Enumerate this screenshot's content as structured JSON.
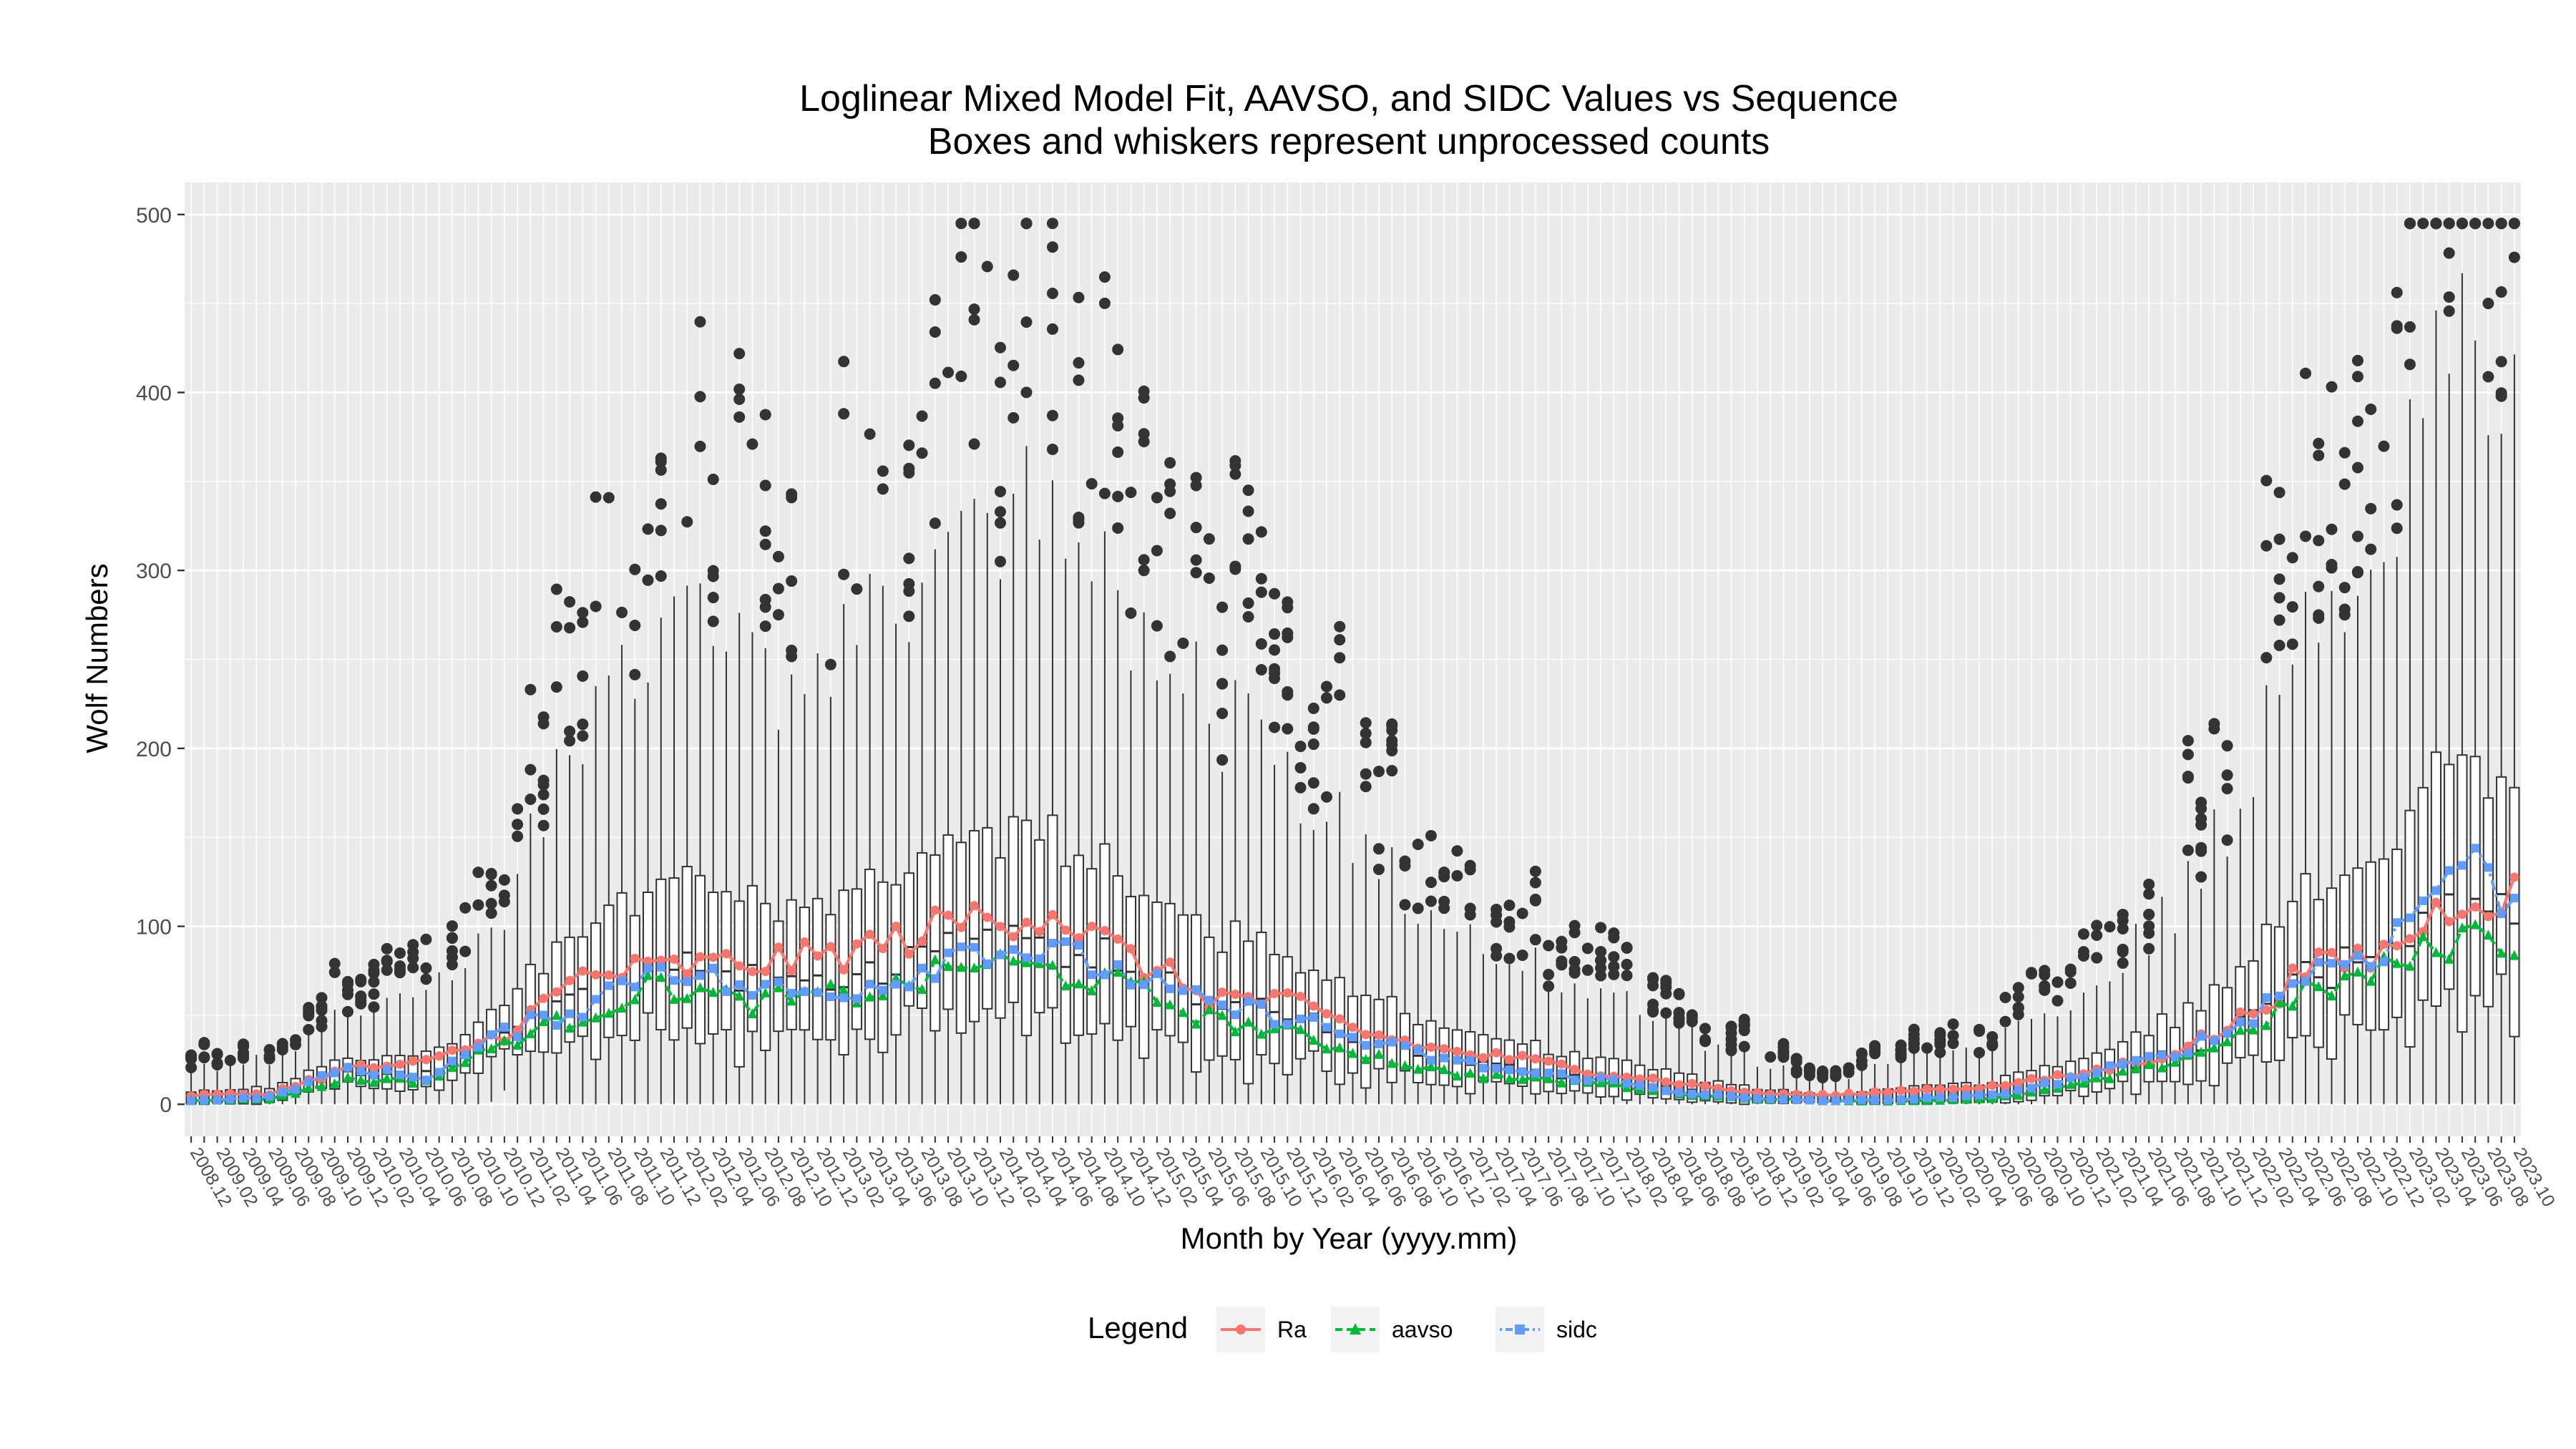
{
  "chart_data": {
    "type": "line",
    "title": "Loglinear Mixed Model Fit, AAVSO, and SIDC Values vs Sequence",
    "subtitle": "Boxes and whiskers represent unprocessed counts",
    "xlabel": "Month by Year (yyyy.mm)",
    "ylabel": "Wolf Numbers",
    "ylim": [
      -18,
      518
    ],
    "yticks": [
      0,
      100,
      200,
      300,
      400,
      500
    ],
    "grid": true,
    "legend_position": "bottom",
    "legend_title": "Legend",
    "x_start": "2008-12",
    "x_end": "2023-10",
    "x_tick_every_months": 2,
    "series": [
      {
        "name": "Ra",
        "color": "#F8766D",
        "marker": "circle",
        "dash": "solid"
      },
      {
        "name": "aavso",
        "color": "#00BA38",
        "marker": "triangle",
        "dash": "dashed"
      },
      {
        "name": "sidc",
        "color": "#619CFF",
        "marker": "square",
        "dash": "dotdash"
      }
    ],
    "anchors": {
      "dates": [
        "2008-12",
        "2009-06",
        "2009-12",
        "2010-06",
        "2010-12",
        "2011-06",
        "2011-12",
        "2012-06",
        "2012-12",
        "2013-06",
        "2013-12",
        "2014-06",
        "2014-12",
        "2015-06",
        "2015-12",
        "2016-06",
        "2016-12",
        "2017-06",
        "2017-12",
        "2018-06",
        "2018-12",
        "2019-06",
        "2019-12",
        "2020-06",
        "2020-12",
        "2021-06",
        "2021-12",
        "2022-06",
        "2022-12",
        "2023-06",
        "2023-10"
      ],
      "Ra": [
        5,
        6,
        20,
        23,
        40,
        72,
        76,
        79,
        82,
        92,
        105,
        108,
        82,
        61,
        57,
        40,
        30,
        25,
        18,
        12,
        6,
        5,
        8,
        10,
        16,
        25,
        42,
        75,
        85,
        118,
        118
      ],
      "aavso": [
        2,
        3,
        14,
        13,
        35,
        50,
        68,
        57,
        60,
        65,
        80,
        75,
        65,
        48,
        40,
        28,
        18,
        14,
        12,
        6,
        3,
        2,
        2,
        3,
        10,
        20,
        35,
        62,
        75,
        95,
        92
      ],
      "sidc": [
        2,
        4,
        20,
        15,
        40,
        55,
        80,
        65,
        62,
        70,
        90,
        85,
        72,
        55,
        50,
        35,
        25,
        18,
        14,
        7,
        3,
        2,
        3,
        5,
        14,
        25,
        40,
        74,
        88,
        140,
        112
      ],
      "spread": [
        14,
        18,
        30,
        42,
        60,
        120,
        160,
        150,
        150,
        170,
        220,
        210,
        180,
        140,
        120,
        90,
        70,
        55,
        45,
        28,
        16,
        10,
        18,
        22,
        40,
        60,
        100,
        150,
        200,
        280,
        260
      ]
    },
    "box_summary": "One box per month (179 boxes, 2008-12 to 2023-10) summarizing the distribution of unprocessed observer counts; outliers reach about 490 in 2023."
  }
}
